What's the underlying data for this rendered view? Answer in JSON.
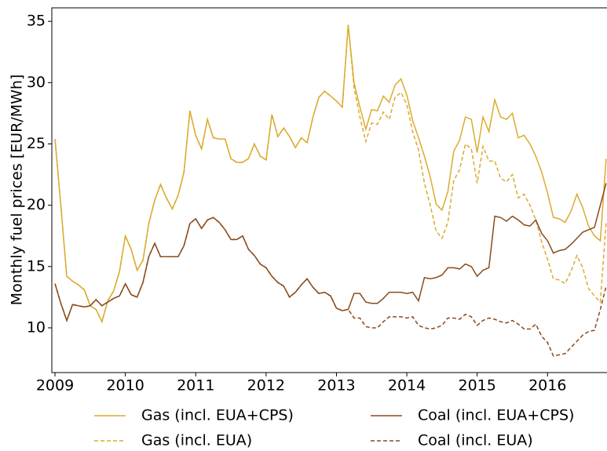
{
  "chart_data": {
    "type": "line",
    "ylabel": "Monthly fuel prices [EUR/MWh]",
    "x": [
      2009,
      2009.083,
      2009.167,
      2009.25,
      2009.333,
      2009.417,
      2009.5,
      2009.583,
      2009.667,
      2009.75,
      2009.833,
      2009.917,
      2010,
      2010.083,
      2010.167,
      2010.25,
      2010.333,
      2010.417,
      2010.5,
      2010.583,
      2010.667,
      2010.75,
      2010.833,
      2010.917,
      2011,
      2011.083,
      2011.167,
      2011.25,
      2011.333,
      2011.417,
      2011.5,
      2011.583,
      2011.667,
      2011.75,
      2011.833,
      2011.917,
      2012,
      2012.083,
      2012.167,
      2012.25,
      2012.333,
      2012.417,
      2012.5,
      2012.583,
      2012.667,
      2012.75,
      2012.833,
      2012.917,
      2013,
      2013.083,
      2013.167,
      2013.25,
      2013.333,
      2013.417,
      2013.5,
      2013.583,
      2013.667,
      2013.75,
      2013.833,
      2013.917,
      2014,
      2014.083,
      2014.167,
      2014.25,
      2014.333,
      2014.417,
      2014.5,
      2014.583,
      2014.667,
      2014.75,
      2014.833,
      2014.917,
      2015,
      2015.083,
      2015.167,
      2015.25,
      2015.333,
      2015.417,
      2015.5,
      2015.583,
      2015.667,
      2015.75,
      2015.833,
      2015.917,
      2016,
      2016.083,
      2016.167,
      2016.25,
      2016.333,
      2016.417,
      2016.5,
      2016.583,
      2016.667,
      2016.75,
      2016.833
    ],
    "series": [
      {
        "name": "Gas (incl. EUA+CPS)",
        "color": "#dbab2e",
        "linestyle": "solid",
        "values": [
          25.4,
          20,
          14.2,
          13.8,
          13.5,
          13.1,
          11.8,
          11.5,
          10.5,
          12.2,
          13.0,
          14.6,
          17.5,
          16.4,
          14.7,
          15.5,
          18.5,
          20.4,
          21.7,
          20.6,
          19.7,
          20.8,
          22.7,
          27.7,
          25.7,
          24.6,
          27.0,
          25.5,
          25.4,
          25.4,
          23.8,
          23.5,
          23.5,
          23.8,
          25.0,
          24.0,
          23.7,
          27.4,
          25.6,
          26.3,
          25.6,
          24.7,
          25.5,
          25.1,
          27.2,
          28.8,
          29.3,
          28.9,
          28.5,
          28.0,
          34.7,
          30.0,
          28.0,
          26.2,
          27.8,
          27.7,
          28.9,
          28.4,
          29.8,
          30.3,
          29.0,
          26.9,
          25.5,
          24.0,
          22.3,
          20.1,
          19.6,
          21.1,
          24.4,
          25.3,
          27.2,
          27.0,
          24.3,
          27.2,
          26.0,
          28.6,
          27.2,
          27.0,
          27.5,
          25.5,
          25.7,
          25.0,
          24.0,
          22.7,
          21.0,
          19.0,
          18.9,
          18.6,
          19.5,
          20.9,
          19.8,
          18.3,
          17.5,
          17.1,
          23.8
        ]
      },
      {
        "name": "Gas (incl. EUA)",
        "color": "#dbab2e",
        "linestyle": "dashed",
        "values": [
          25.4,
          20,
          14.2,
          13.8,
          13.5,
          13.1,
          11.8,
          11.5,
          10.5,
          12.2,
          13.0,
          14.6,
          17.5,
          16.4,
          14.7,
          15.5,
          18.5,
          20.4,
          21.7,
          20.6,
          19.7,
          20.8,
          22.7,
          27.7,
          25.7,
          24.6,
          27.0,
          25.5,
          25.4,
          25.4,
          23.8,
          23.5,
          23.5,
          23.8,
          25.0,
          24.0,
          23.7,
          27.4,
          25.6,
          26.3,
          25.6,
          24.7,
          25.5,
          25.1,
          27.2,
          28.8,
          29.3,
          28.9,
          28.5,
          28.0,
          34.7,
          29.6,
          27.2,
          25.2,
          26.7,
          26.6,
          27.6,
          27.0,
          28.8,
          29.2,
          28.2,
          26.0,
          24.5,
          21.8,
          20.0,
          17.9,
          17.3,
          18.6,
          22.0,
          22.9,
          25.0,
          24.6,
          21.8,
          24.8,
          23.6,
          23.6,
          22.2,
          21.9,
          22.5,
          20.6,
          20.9,
          20.0,
          18.8,
          17.0,
          15.6,
          14.0,
          13.9,
          13.6,
          14.6,
          15.9,
          14.9,
          13.2,
          12.6,
          12.1,
          18.6
        ]
      },
      {
        "name": "Coal (incl. EUA+CPS)",
        "color": "#8b4a1a",
        "linestyle": "solid",
        "values": [
          13.6,
          12.0,
          10.6,
          11.9,
          11.8,
          11.7,
          11.8,
          12.3,
          11.8,
          12.1,
          12.4,
          12.6,
          13.6,
          12.7,
          12.5,
          13.7,
          15.8,
          16.9,
          15.8,
          15.8,
          15.8,
          15.8,
          16.7,
          18.5,
          18.9,
          18.1,
          18.8,
          19.0,
          18.6,
          18.0,
          17.2,
          17.2,
          17.5,
          16.4,
          15.9,
          15.2,
          14.9,
          14.2,
          13.7,
          13.4,
          12.5,
          12.9,
          13.5,
          14.0,
          13.3,
          12.8,
          12.9,
          12.6,
          11.6,
          11.4,
          11.5,
          12.8,
          12.8,
          12.1,
          12.0,
          12.0,
          12.4,
          12.9,
          12.9,
          12.9,
          12.8,
          12.9,
          12.2,
          14.1,
          14.0,
          14.1,
          14.3,
          14.9,
          14.9,
          14.8,
          15.2,
          15.0,
          14.2,
          14.7,
          14.9,
          19.1,
          19.0,
          18.7,
          19.1,
          18.8,
          18.4,
          18.3,
          18.8,
          17.7,
          17.1,
          16.1,
          16.3,
          16.4,
          16.8,
          17.3,
          17.8,
          18.0,
          18.2,
          20.0,
          21.8
        ]
      },
      {
        "name": "Coal (incl. EUA)",
        "color": "#8b4a1a",
        "linestyle": "dashed",
        "values": [
          13.6,
          12.0,
          10.6,
          11.9,
          11.8,
          11.7,
          11.8,
          12.3,
          11.8,
          12.1,
          12.4,
          12.6,
          13.6,
          12.7,
          12.5,
          13.7,
          15.8,
          16.9,
          15.8,
          15.8,
          15.8,
          15.8,
          16.7,
          18.5,
          18.9,
          18.1,
          18.8,
          19.0,
          18.6,
          18.0,
          17.2,
          17.2,
          17.5,
          16.4,
          15.9,
          15.2,
          14.9,
          14.2,
          13.7,
          13.4,
          12.5,
          12.9,
          13.5,
          14.0,
          13.3,
          12.8,
          12.9,
          12.6,
          11.6,
          11.4,
          11.5,
          10.8,
          10.8,
          10.1,
          10.0,
          10.0,
          10.5,
          10.9,
          10.9,
          10.9,
          10.8,
          10.9,
          10.2,
          10.0,
          9.9,
          10.0,
          10.2,
          10.8,
          10.8,
          10.7,
          11.1,
          10.9,
          10.2,
          10.6,
          10.8,
          10.7,
          10.5,
          10.4,
          10.6,
          10.3,
          9.9,
          9.9,
          10.3,
          9.3,
          8.8,
          7.7,
          7.8,
          7.9,
          8.4,
          8.9,
          9.4,
          9.7,
          9.8,
          11.5,
          13.4
        ]
      }
    ],
    "xlim": [
      2008.955,
      2016.845
    ],
    "xticks": [
      2009,
      2010,
      2011,
      2012,
      2013,
      2014,
      2015,
      2016
    ],
    "ylim": [
      6.35,
      36.1
    ],
    "yticks": [
      10,
      15,
      20,
      25,
      30,
      35
    ],
    "grid": false,
    "legend": "below"
  }
}
